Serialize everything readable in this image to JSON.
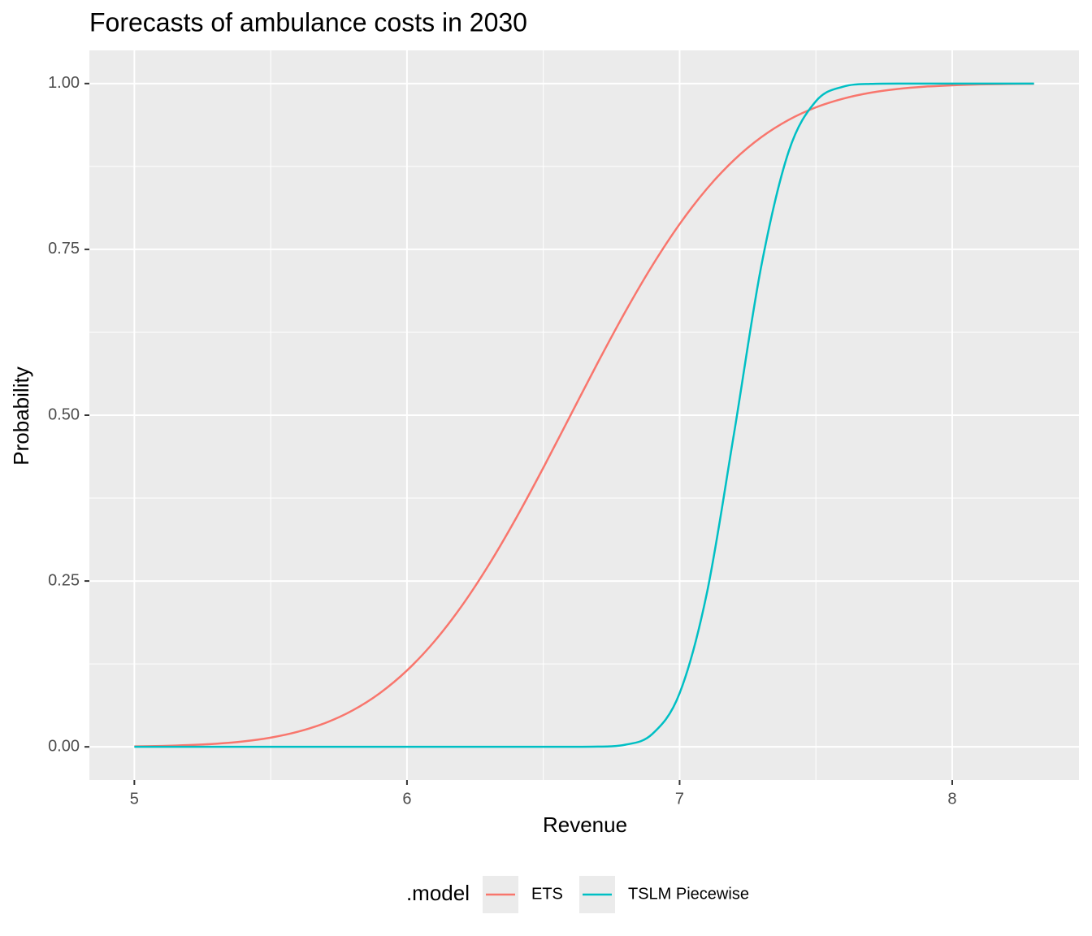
{
  "chart_data": {
    "type": "line",
    "title": "Forecasts of ambulance costs in 2030",
    "x_label": "Revenue",
    "y_label": "Probability",
    "legend_title": ".model",
    "legend_position": "bottom",
    "grid": true,
    "background": "#ebebeb",
    "xlim": [
      4.835,
      8.465
    ],
    "ylim": [
      -0.05,
      1.05
    ],
    "xticks": [
      5,
      6,
      7,
      8
    ],
    "xminor": [
      5.5,
      6.5,
      7.5
    ],
    "yticks": [
      {
        "value": 0,
        "label": "0.00"
      },
      {
        "value": 0.25,
        "label": "0.25"
      },
      {
        "value": 0.5,
        "label": "0.50"
      },
      {
        "value": 0.75,
        "label": "0.75"
      },
      {
        "value": 1,
        "label": "1.00"
      }
    ],
    "yminor": [
      0.125,
      0.375,
      0.625,
      0.875
    ],
    "x": [
      5.0,
      5.1,
      5.2,
      5.3,
      5.4,
      5.5,
      5.6,
      5.7,
      5.8,
      5.9,
      6.0,
      6.1,
      6.2,
      6.3,
      6.4,
      6.5,
      6.6,
      6.7,
      6.8,
      6.9,
      7.0,
      7.1,
      7.2,
      7.3,
      7.4,
      7.5,
      7.6,
      7.7,
      7.8,
      7.9,
      8.0,
      8.1,
      8.2,
      8.3
    ],
    "series": [
      {
        "name": "ETS",
        "color": "#F8766D",
        "values": [
          0.0007,
          0.0013,
          0.0026,
          0.0047,
          0.0082,
          0.0139,
          0.0228,
          0.0359,
          0.0548,
          0.0808,
          0.1151,
          0.1587,
          0.2119,
          0.2743,
          0.3446,
          0.4207,
          0.5,
          0.5793,
          0.6554,
          0.7257,
          0.7881,
          0.8413,
          0.8849,
          0.9192,
          0.9452,
          0.9641,
          0.9772,
          0.9861,
          0.9918,
          0.9953,
          0.9974,
          0.9987,
          0.9993,
          0.9997
        ]
      },
      {
        "name": "TSLM Piecewise",
        "color": "#00BFC4",
        "values": [
          0,
          0,
          0,
          0,
          0,
          0,
          0,
          0,
          0,
          0,
          0,
          0,
          0,
          0,
          0,
          0,
          0,
          0.0003,
          0.0031,
          0.0194,
          0.0808,
          0.2317,
          0.4734,
          0.7257,
          0.8974,
          0.9734,
          0.9953,
          0.9995,
          1,
          1,
          1,
          1,
          1,
          1
        ]
      }
    ]
  }
}
